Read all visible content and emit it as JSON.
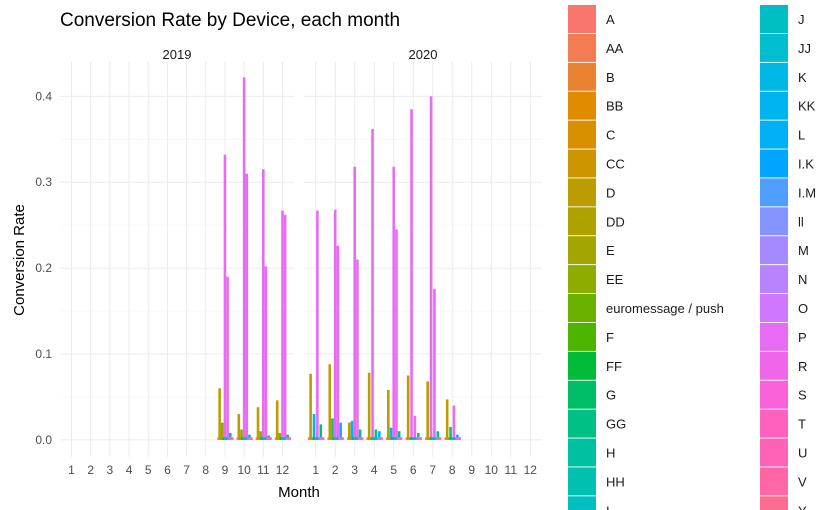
{
  "chart_data": {
    "type": "bar",
    "title": "Conversion Rate by Device, each month",
    "xlabel": "Month",
    "ylabel": "Conversion Rate",
    "ylim": [
      -0.02,
      0.44
    ],
    "yticks": [
      0.0,
      0.1,
      0.2,
      0.3,
      0.4
    ],
    "ytick_labels": [
      "0.0",
      "0.1",
      "0.2",
      "0.3",
      "0.4"
    ],
    "categories": [
      "1",
      "2",
      "3",
      "4",
      "5",
      "6",
      "7",
      "8",
      "9",
      "10",
      "11",
      "12"
    ],
    "grid": true,
    "legend_position": "right",
    "facets": [
      {
        "label": "2019",
        "bars": [
          {
            "month": 9,
            "series": "D",
            "value": 0.06
          },
          {
            "month": 9,
            "series": "EE",
            "value": 0.02
          },
          {
            "month": 9,
            "series": "P",
            "value": 0.332
          },
          {
            "month": 9,
            "series": "P",
            "value": 0.19
          },
          {
            "month": 9,
            "series": "GG",
            "value": 0.008
          },
          {
            "month": 10,
            "series": "D",
            "value": 0.03
          },
          {
            "month": 10,
            "series": "EE",
            "value": 0.012
          },
          {
            "month": 10,
            "series": "P",
            "value": 0.422
          },
          {
            "month": 10,
            "series": "P",
            "value": 0.31
          },
          {
            "month": 10,
            "series": "GG",
            "value": 0.006
          },
          {
            "month": 11,
            "series": "D",
            "value": 0.038
          },
          {
            "month": 11,
            "series": "EE",
            "value": 0.01
          },
          {
            "month": 11,
            "series": "P",
            "value": 0.315
          },
          {
            "month": 11,
            "series": "P",
            "value": 0.202
          },
          {
            "month": 11,
            "series": "GG",
            "value": 0.005
          },
          {
            "month": 12,
            "series": "D",
            "value": 0.046
          },
          {
            "month": 12,
            "series": "EE",
            "value": 0.008
          },
          {
            "month": 12,
            "series": "P",
            "value": 0.267
          },
          {
            "month": 12,
            "series": "P",
            "value": 0.262
          },
          {
            "month": 12,
            "series": "GG",
            "value": 0.006
          }
        ]
      },
      {
        "label": "2020",
        "bars": [
          {
            "month": 1,
            "series": "D",
            "value": 0.077
          },
          {
            "month": 1,
            "series": "KK",
            "value": 0.03
          },
          {
            "month": 1,
            "series": "P",
            "value": 0.267
          },
          {
            "month": 1,
            "series": "GG",
            "value": 0.018
          },
          {
            "month": 2,
            "series": "D",
            "value": 0.088
          },
          {
            "month": 2,
            "series": "GG",
            "value": 0.025
          },
          {
            "month": 2,
            "series": "P",
            "value": 0.268
          },
          {
            "month": 2,
            "series": "P",
            "value": 0.226
          },
          {
            "month": 2,
            "series": "KK",
            "value": 0.02
          },
          {
            "month": 3,
            "series": "D",
            "value": 0.02
          },
          {
            "month": 3,
            "series": "KK",
            "value": 0.022
          },
          {
            "month": 3,
            "series": "P",
            "value": 0.318
          },
          {
            "month": 3,
            "series": "P",
            "value": 0.21
          },
          {
            "month": 3,
            "series": "GG",
            "value": 0.012
          },
          {
            "month": 4,
            "series": "D",
            "value": 0.078
          },
          {
            "month": 4,
            "series": "P",
            "value": 0.362
          },
          {
            "month": 4,
            "series": "GG",
            "value": 0.012
          },
          {
            "month": 4,
            "series": "KK",
            "value": 0.01
          },
          {
            "month": 5,
            "series": "D",
            "value": 0.058
          },
          {
            "month": 5,
            "series": "KK",
            "value": 0.014
          },
          {
            "month": 5,
            "series": "P",
            "value": 0.318
          },
          {
            "month": 5,
            "series": "P",
            "value": 0.245
          },
          {
            "month": 5,
            "series": "GG",
            "value": 0.01
          },
          {
            "month": 6,
            "series": "D",
            "value": 0.075
          },
          {
            "month": 6,
            "series": "P",
            "value": 0.385
          },
          {
            "month": 6,
            "series": "P",
            "value": 0.028
          },
          {
            "month": 6,
            "series": "GG",
            "value": 0.008
          },
          {
            "month": 7,
            "series": "D",
            "value": 0.068
          },
          {
            "month": 7,
            "series": "P",
            "value": 0.4
          },
          {
            "month": 7,
            "series": "P",
            "value": 0.176
          },
          {
            "month": 7,
            "series": "GG",
            "value": 0.01
          },
          {
            "month": 8,
            "series": "D",
            "value": 0.047
          },
          {
            "month": 8,
            "series": "GG",
            "value": 0.015
          },
          {
            "month": 8,
            "series": "P",
            "value": 0.04
          },
          {
            "month": 8,
            "series": "KK",
            "value": 0.006
          }
        ]
      }
    ],
    "legend": [
      {
        "name": "A",
        "color": "#F8766D"
      },
      {
        "name": "AA",
        "color": "#F27D52"
      },
      {
        "name": "B",
        "color": "#EA8331"
      },
      {
        "name": "BB",
        "color": "#E08B00"
      },
      {
        "name": "C",
        "color": "#D89000"
      },
      {
        "name": "CC",
        "color": "#CD9600"
      },
      {
        "name": "D",
        "color": "#BB9D00"
      },
      {
        "name": "DD",
        "color": "#AEA200"
      },
      {
        "name": "E",
        "color": "#A3A500"
      },
      {
        "name": "EE",
        "color": "#8EAB00"
      },
      {
        "name": "euromessage / push",
        "color": "#6BB100"
      },
      {
        "name": "F",
        "color": "#4DB500"
      },
      {
        "name": "FF",
        "color": "#00BA38"
      },
      {
        "name": "G",
        "color": "#00BE67"
      },
      {
        "name": "GG",
        "color": "#00C086"
      },
      {
        "name": "H",
        "color": "#00C19F"
      },
      {
        "name": "HH",
        "color": "#00C0AF"
      },
      {
        "name": "I",
        "color": "#00BFBF"
      },
      {
        "name": "J",
        "color": "#00BFC4"
      },
      {
        "name": "JJ",
        "color": "#00BDD0"
      },
      {
        "name": "K",
        "color": "#00B8E5"
      },
      {
        "name": "KK",
        "color": "#00B4EF"
      },
      {
        "name": "L",
        "color": "#00B0F6"
      },
      {
        "name": "I.K",
        "color": "#00A5FF"
      },
      {
        "name": "I.M",
        "color": "#4E9DFF"
      },
      {
        "name": "ll",
        "color": "#8494FF"
      },
      {
        "name": "M",
        "color": "#A58AFF"
      },
      {
        "name": "N",
        "color": "#B983FF"
      },
      {
        "name": "O",
        "color": "#CF78FF"
      },
      {
        "name": "P",
        "color": "#E76BF3"
      },
      {
        "name": "R",
        "color": "#F066EA"
      },
      {
        "name": "S",
        "color": "#FA62DB"
      },
      {
        "name": "T",
        "color": "#FF62BC"
      },
      {
        "name": "U",
        "color": "#FF63B6"
      },
      {
        "name": "V",
        "color": "#FF67A4"
      },
      {
        "name": "Y",
        "color": "#FF6C91"
      }
    ]
  }
}
